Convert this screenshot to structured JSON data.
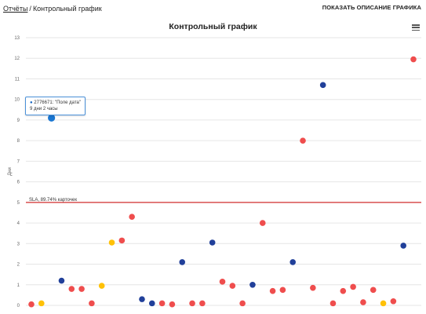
{
  "breadcrumb": {
    "parent": "Отчёты",
    "separator": "/",
    "current": "Контрольный график"
  },
  "toolbar": {
    "show_description_label": "ПОКАЗАТЬ ОПИСАНИЕ ГРАФИКА"
  },
  "tooltip": {
    "bullet": "●",
    "line1": "2776671: \"Поле дата\"",
    "line2": "9 дни 2 часы"
  },
  "colors": {
    "red": "#ef4d4d",
    "blue": "#21409a",
    "yellow": "#ffc107",
    "highlight": "#1976d2",
    "sla": "#d32f2f",
    "grid": "#e6e6e6"
  },
  "chart_data": {
    "type": "scatter",
    "title": "Контрольный график",
    "ylabel": "Дни",
    "ylim": [
      0,
      13
    ],
    "yticks": [
      0,
      1,
      2,
      3,
      4,
      5,
      6,
      7,
      8,
      9,
      10,
      11,
      12,
      13
    ],
    "grid": true,
    "sla": {
      "value": 5,
      "label": "SLA, 89.74% карточек"
    },
    "points": [
      {
        "x": 1,
        "y": 0.05,
        "color": "red"
      },
      {
        "x": 2,
        "y": 0.1,
        "color": "yellow"
      },
      {
        "x": 3,
        "y": 9.1,
        "color": "highlight"
      },
      {
        "x": 4,
        "y": 1.2,
        "color": "blue"
      },
      {
        "x": 5,
        "y": 0.8,
        "color": "red"
      },
      {
        "x": 6,
        "y": 0.8,
        "color": "red"
      },
      {
        "x": 7,
        "y": 0.1,
        "color": "red"
      },
      {
        "x": 8,
        "y": 0.95,
        "color": "yellow"
      },
      {
        "x": 9,
        "y": 3.05,
        "color": "yellow"
      },
      {
        "x": 10,
        "y": 3.15,
        "color": "red"
      },
      {
        "x": 11,
        "y": 4.3,
        "color": "red"
      },
      {
        "x": 12,
        "y": 0.3,
        "color": "blue"
      },
      {
        "x": 13,
        "y": 0.1,
        "color": "blue"
      },
      {
        "x": 14,
        "y": 0.1,
        "color": "red"
      },
      {
        "x": 15,
        "y": 0.05,
        "color": "red"
      },
      {
        "x": 16,
        "y": 2.1,
        "color": "blue"
      },
      {
        "x": 17,
        "y": 0.1,
        "color": "red"
      },
      {
        "x": 18,
        "y": 0.1,
        "color": "red"
      },
      {
        "x": 19,
        "y": 3.05,
        "color": "blue"
      },
      {
        "x": 20,
        "y": 1.15,
        "color": "red"
      },
      {
        "x": 21,
        "y": 0.95,
        "color": "red"
      },
      {
        "x": 22,
        "y": 0.1,
        "color": "red"
      },
      {
        "x": 23,
        "y": 1.0,
        "color": "blue"
      },
      {
        "x": 24,
        "y": 4.0,
        "color": "red"
      },
      {
        "x": 25,
        "y": 0.7,
        "color": "red"
      },
      {
        "x": 26,
        "y": 0.75,
        "color": "red"
      },
      {
        "x": 27,
        "y": 2.1,
        "color": "blue"
      },
      {
        "x": 28,
        "y": 8.0,
        "color": "red"
      },
      {
        "x": 29,
        "y": 0.85,
        "color": "red"
      },
      {
        "x": 30,
        "y": 10.7,
        "color": "blue"
      },
      {
        "x": 31,
        "y": 0.1,
        "color": "red"
      },
      {
        "x": 32,
        "y": 0.7,
        "color": "red"
      },
      {
        "x": 33,
        "y": 0.9,
        "color": "red"
      },
      {
        "x": 34,
        "y": 0.15,
        "color": "red"
      },
      {
        "x": 35,
        "y": 0.75,
        "color": "red"
      },
      {
        "x": 36,
        "y": 0.1,
        "color": "yellow"
      },
      {
        "x": 37,
        "y": 0.2,
        "color": "red"
      },
      {
        "x": 38,
        "y": 2.9,
        "color": "blue"
      },
      {
        "x": 39,
        "y": 11.95,
        "color": "red"
      }
    ]
  }
}
